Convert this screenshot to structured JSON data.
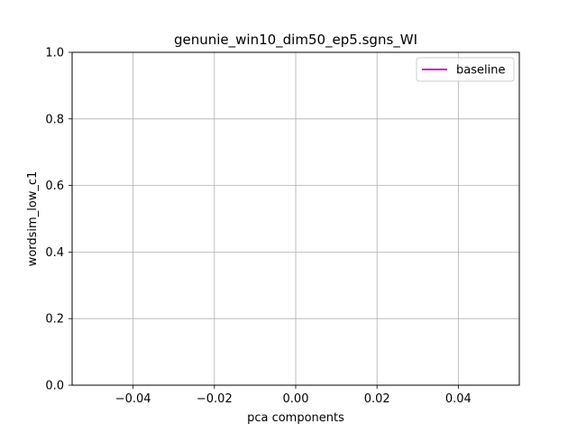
{
  "chart_data": {
    "type": "line",
    "title": "genunie_win10_dim50_ep5.sgns_WI",
    "xlabel": "pca components",
    "ylabel": "wordsim_low_c1",
    "xlim": [
      -0.055,
      0.055
    ],
    "ylim": [
      0.0,
      1.0
    ],
    "x_ticks": [
      -0.04,
      -0.02,
      0.0,
      0.02,
      0.04
    ],
    "x_tick_labels": [
      "−0.04",
      "−0.02",
      "0.00",
      "0.02",
      "0.04"
    ],
    "y_ticks": [
      0.0,
      0.2,
      0.4,
      0.6,
      0.8,
      1.0
    ],
    "y_tick_labels": [
      "0.0",
      "0.2",
      "0.4",
      "0.6",
      "0.8",
      "1.0"
    ],
    "grid": true,
    "legend_position": "top-right",
    "series": [
      {
        "name": "baseline",
        "color": "#bf00bf",
        "x": [],
        "y": []
      }
    ]
  }
}
